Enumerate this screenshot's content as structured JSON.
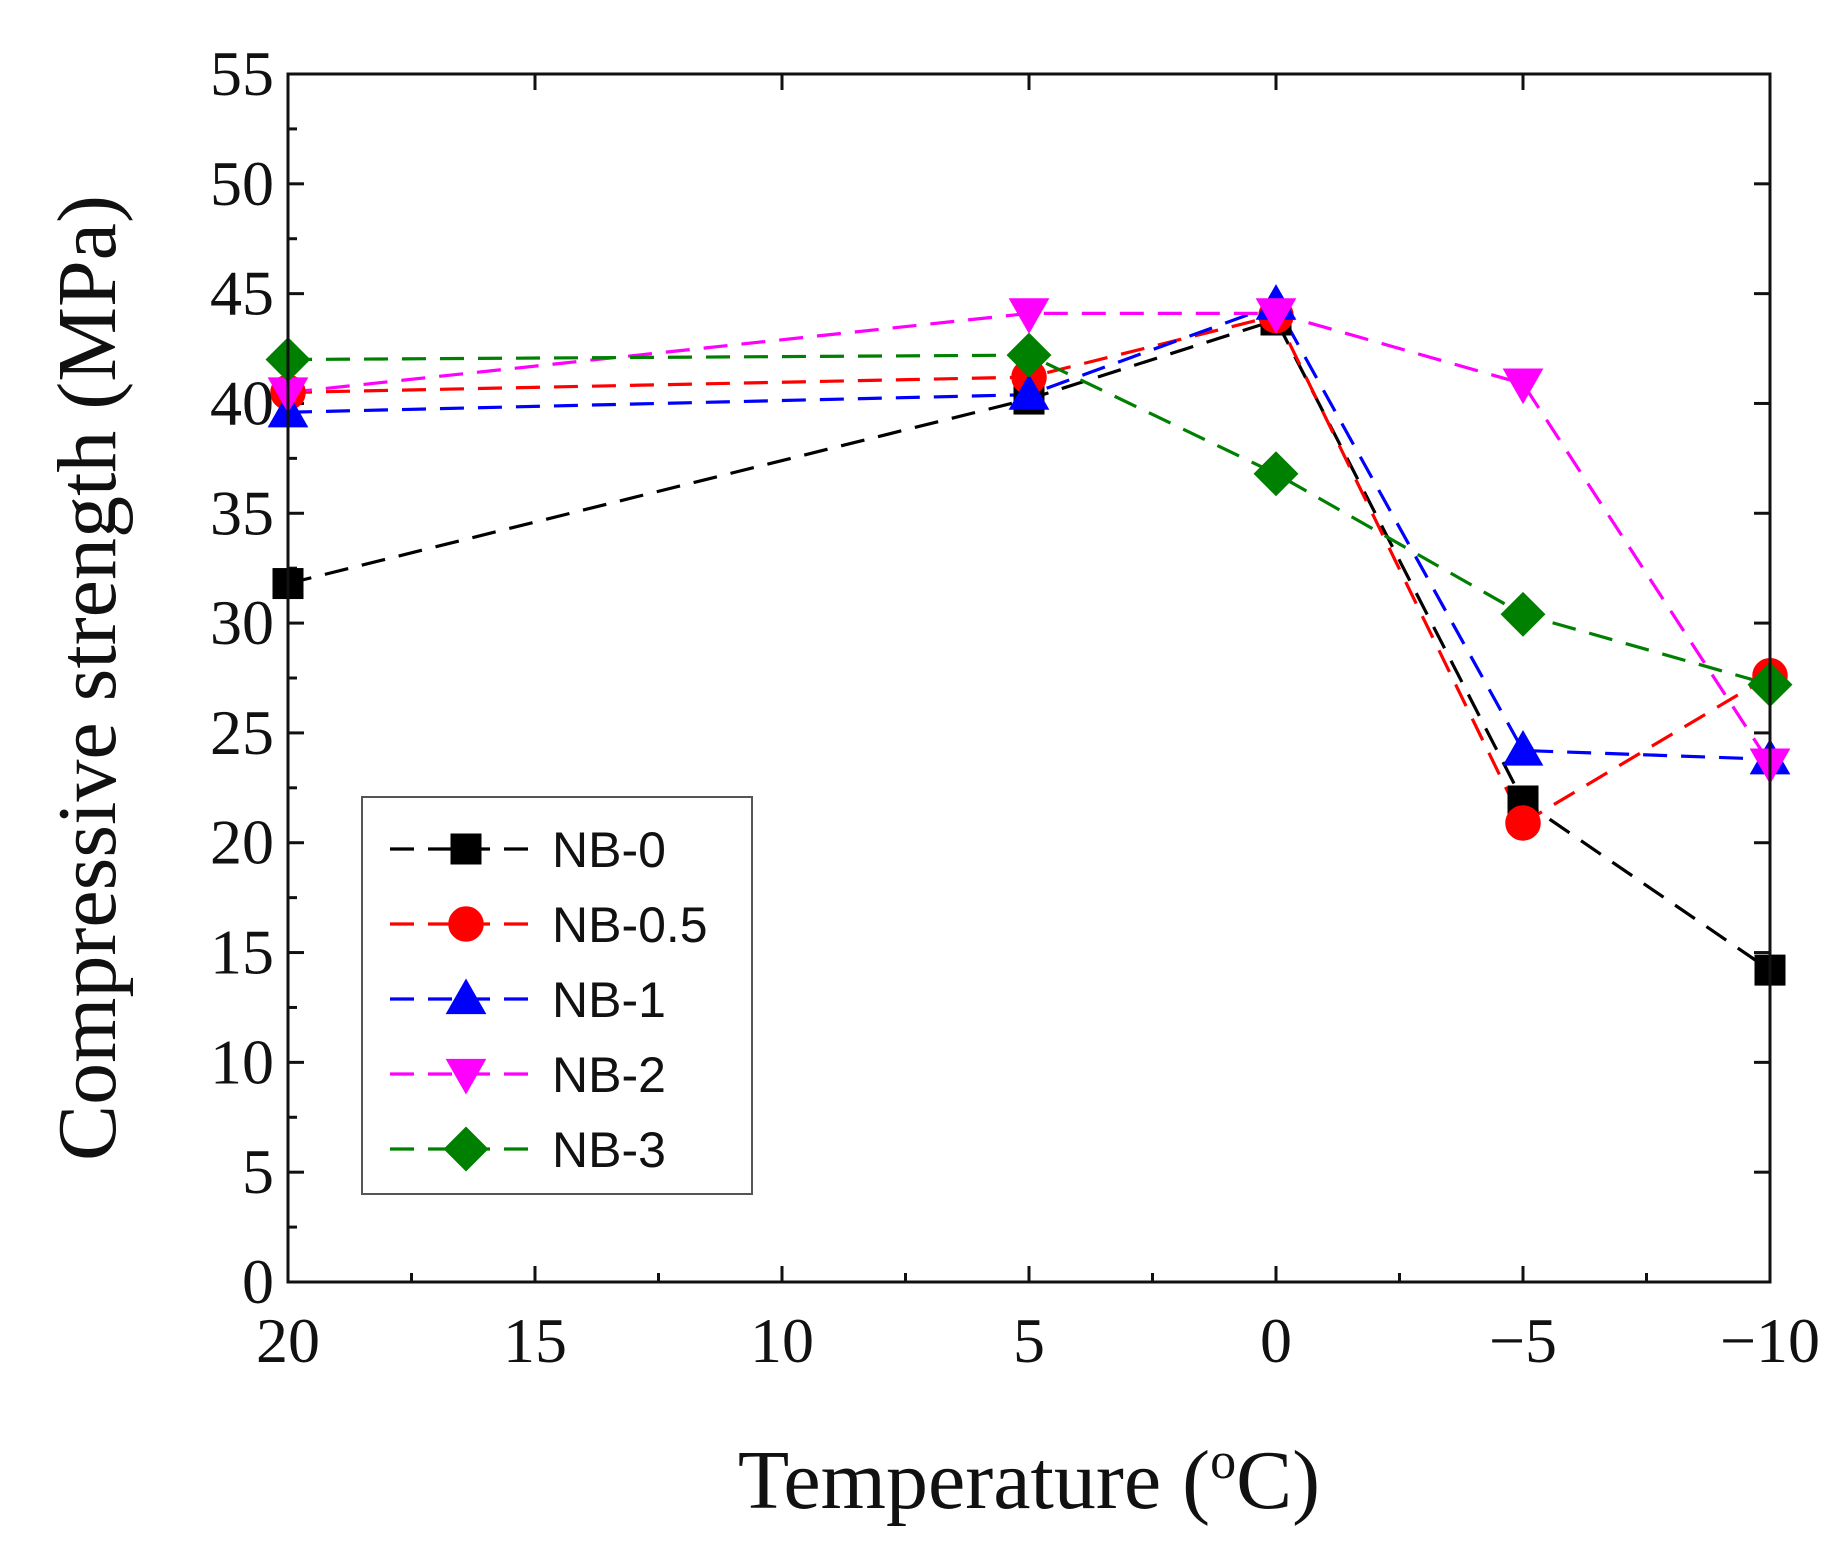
{
  "chart_data": {
    "type": "line",
    "title": "",
    "xlabel": "Temperature (",
    "xlabel_sup": "o",
    "xlabel_end": "C)",
    "ylabel": "Compressive strength (MPa)",
    "xlim": [
      20,
      -10
    ],
    "ylim": [
      0,
      55
    ],
    "x_ticks": [
      20,
      15,
      10,
      5,
      0,
      -5,
      -10
    ],
    "x_tick_labels": [
      "20",
      "15",
      "10",
      "5",
      "0",
      "−5",
      "−10"
    ],
    "y_ticks": [
      0,
      5,
      10,
      15,
      20,
      25,
      30,
      35,
      40,
      45,
      50,
      55
    ],
    "y_tick_labels": [
      "0",
      "5",
      "10",
      "15",
      "20",
      "25",
      "30",
      "35",
      "40",
      "45",
      "50",
      "55"
    ],
    "x": [
      20,
      5,
      0,
      -5,
      -10
    ],
    "legend_position": "lower-left",
    "series": [
      {
        "name": "NB-0",
        "color": "#000000",
        "marker": "square",
        "values": [
          31.8,
          40.2,
          43.8,
          21.9,
          14.2
        ]
      },
      {
        "name": "NB-0.5",
        "color": "#ff0000",
        "marker": "circle",
        "values": [
          40.5,
          41.2,
          44.0,
          20.9,
          27.6
        ]
      },
      {
        "name": "NB-1",
        "color": "#0000ff",
        "marker": "triangle-up",
        "values": [
          39.6,
          40.4,
          44.5,
          24.2,
          23.8
        ]
      },
      {
        "name": "NB-2",
        "color": "#ff00ff",
        "marker": "triangle-down",
        "values": [
          40.5,
          44.1,
          44.1,
          40.9,
          23.6
        ]
      },
      {
        "name": "NB-3",
        "color": "#008000",
        "marker": "diamond",
        "values": [
          42.0,
          42.2,
          36.8,
          30.4,
          27.2
        ]
      }
    ]
  }
}
